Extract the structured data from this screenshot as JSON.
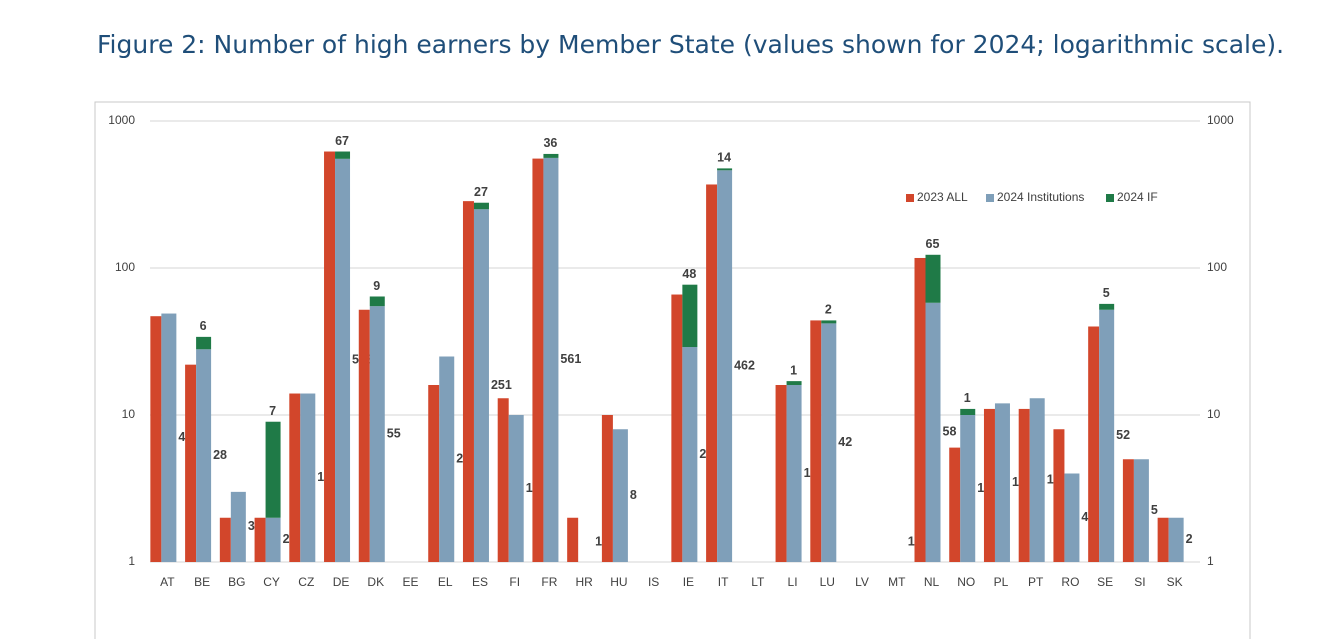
{
  "chart_data": {
    "type": "bar",
    "title": "Figure 2: Number of high earners by Member State (values shown for 2024; logarithmic scale).",
    "categories": [
      "AT",
      "BE",
      "BG",
      "CY",
      "CZ",
      "DE",
      "DK",
      "EE",
      "EL",
      "ES",
      "FI",
      "FR",
      "HR",
      "HU",
      "IS",
      "IE",
      "IT",
      "LT",
      "LI",
      "LU",
      "LV",
      "MT",
      "NL",
      "NO",
      "PL",
      "PT",
      "RO",
      "SE",
      "SI",
      "SK"
    ],
    "series": [
      {
        "name": "2023 ALL",
        "color": "#d2462b",
        "values": [
          47,
          22,
          2,
          2,
          14,
          620,
          52,
          null,
          16,
          285,
          13,
          555,
          2,
          10,
          null,
          66,
          370,
          null,
          16,
          44,
          null,
          null,
          117,
          6,
          11,
          11,
          8,
          40,
          5,
          2
        ]
      },
      {
        "name": "2024 Institutions",
        "color": "#7f9fb9",
        "values": [
          49,
          28,
          3,
          2,
          14,
          553,
          55,
          null,
          25,
          251,
          10,
          561,
          1,
          8,
          null,
          29,
          462,
          null,
          16,
          42,
          null,
          1,
          58,
          10,
          12,
          13,
          4,
          52,
          5,
          2
        ]
      },
      {
        "name": "2024 IF",
        "color": "#1f7a47",
        "values": [
          null,
          6,
          null,
          7,
          null,
          67,
          9,
          null,
          null,
          27,
          null,
          36,
          null,
          null,
          null,
          48,
          14,
          null,
          1,
          2,
          null,
          null,
          65,
          1,
          null,
          null,
          null,
          5,
          null,
          null
        ]
      }
    ],
    "log_scale": true,
    "ylim": [
      1,
      1000
    ],
    "yticks": [
      1,
      10,
      100,
      1000
    ],
    "y2lim": [
      1,
      1000
    ],
    "y2ticks": [
      1,
      10,
      100,
      1000
    ],
    "grid": true,
    "legend": "upper right"
  }
}
